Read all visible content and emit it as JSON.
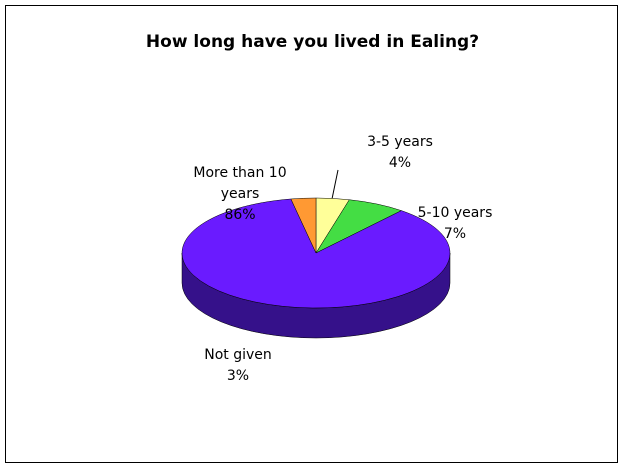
{
  "chart_data": {
    "type": "pie",
    "title": "How long have you lived in Ealing?",
    "categories": [
      "3-5 years",
      "5-10 years",
      "More than 10 years",
      "Not given"
    ],
    "values": [
      4,
      7,
      86,
      3
    ],
    "value_labels": [
      "4%",
      "7%",
      "86%",
      "3%"
    ],
    "colors": [
      "#ffff99",
      "#44dd44",
      "#6a1bff",
      "#ff9933"
    ],
    "side_colors": [
      "#999955",
      "#228822",
      "#35118a",
      "#995c1f"
    ]
  }
}
